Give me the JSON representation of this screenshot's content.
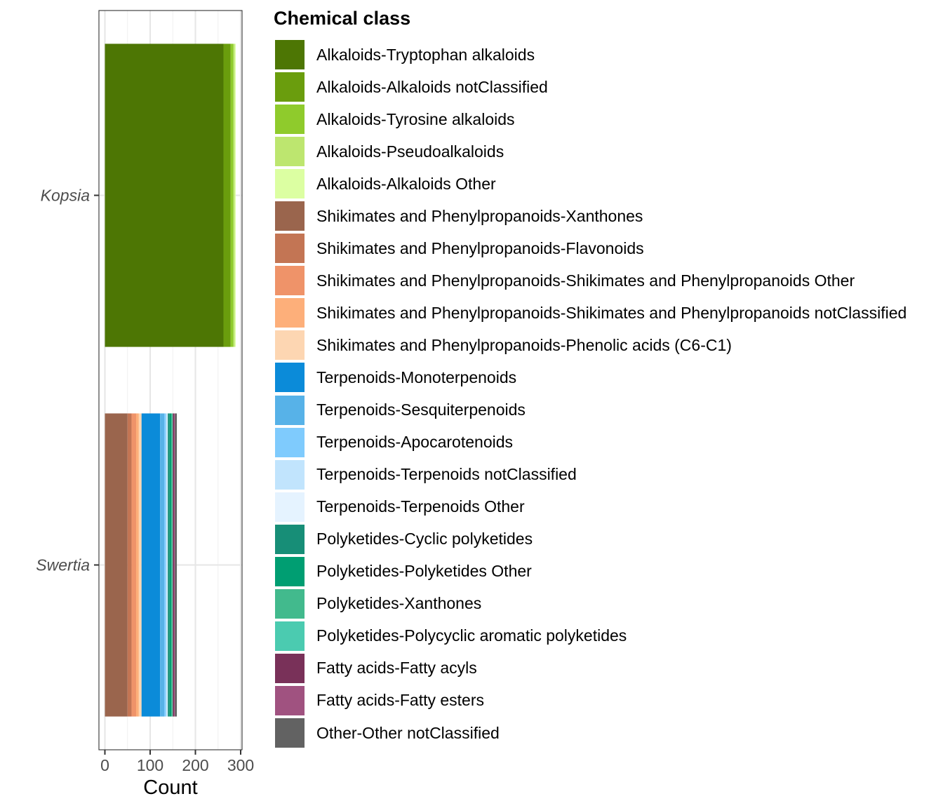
{
  "chart_data": {
    "type": "bar",
    "orientation": "horizontal",
    "stacked": true,
    "xlabel": "Count",
    "ylabel": "",
    "xlim": [
      0,
      300
    ],
    "x_ticks": [
      0,
      100,
      200,
      300
    ],
    "grid": true,
    "legend_title": "Chemical class",
    "legend_position": "right",
    "categories": [
      "Kopsia",
      "Swertia"
    ],
    "series": [
      {
        "name": "Alkaloids-Tryptophan alkaloids",
        "color": "#4d7604",
        "values": [
          262,
          0
        ]
      },
      {
        "name": "Alkaloids-Alkaloids notClassified",
        "color": "#6a9d0d",
        "values": [
          16,
          0
        ]
      },
      {
        "name": "Alkaloids-Tyrosine alkaloids",
        "color": "#8fcb2c",
        "values": [
          6,
          0
        ]
      },
      {
        "name": "Alkaloids-Pseudoalkaloids",
        "color": "#bde66f",
        "values": [
          3,
          0
        ]
      },
      {
        "name": "Alkaloids-Alkaloids Other",
        "color": "#dcffa2",
        "values": [
          2,
          0
        ]
      },
      {
        "name": "Shikimates and Phenylpropanoids-Xanthones",
        "color": "#9a654d",
        "values": [
          0,
          50
        ]
      },
      {
        "name": "Shikimates and Phenylpropanoids-Flavonoids",
        "color": "#c37554",
        "values": [
          0,
          9
        ]
      },
      {
        "name": "Shikimates and Phenylpropanoids-Shikimates and Phenylpropanoids Other",
        "color": "#ef9369",
        "values": [
          0,
          10
        ]
      },
      {
        "name": "Shikimates and Phenylpropanoids-Shikimates and Phenylpropanoids notClassified",
        "color": "#fdaf7a",
        "values": [
          0,
          6
        ]
      },
      {
        "name": "Shikimates and Phenylpropanoids-Phenolic acids (C6-C1)",
        "color": "#fdd6b2",
        "values": [
          0,
          6
        ]
      },
      {
        "name": "Terpenoids-Monoterpenoids",
        "color": "#0b8bd9",
        "values": [
          0,
          41
        ]
      },
      {
        "name": "Terpenoids-Sesquiterpenoids",
        "color": "#57b2e8",
        "values": [
          0,
          9
        ]
      },
      {
        "name": "Terpenoids-Apocarotenoids",
        "color": "#7fcbfd",
        "values": [
          0,
          4
        ]
      },
      {
        "name": "Terpenoids-Terpenoids notClassified",
        "color": "#c1e4fd",
        "values": [
          0,
          3
        ]
      },
      {
        "name": "Terpenoids-Terpenoids Other",
        "color": "#e5f3ff",
        "values": [
          0,
          1
        ]
      },
      {
        "name": "Polyketides-Cyclic polyketides",
        "color": "#178e77",
        "values": [
          0,
          4
        ]
      },
      {
        "name": "Polyketides-Polyketides Other",
        "color": "#009e72",
        "values": [
          0,
          4
        ]
      },
      {
        "name": "Polyketides-Xanthones",
        "color": "#42ba8d",
        "values": [
          0,
          2
        ]
      },
      {
        "name": "Polyketides-Polycyclic aromatic polyketides",
        "color": "#4bcbb0",
        "values": [
          0,
          1
        ]
      },
      {
        "name": "Fatty acids-Fatty acyls",
        "color": "#793159",
        "values": [
          0,
          3
        ]
      },
      {
        "name": "Fatty acids-Fatty esters",
        "color": "#a05280",
        "values": [
          0,
          2
        ]
      },
      {
        "name": "Other-Other notClassified",
        "color": "#626262",
        "values": [
          0,
          4
        ]
      }
    ]
  }
}
